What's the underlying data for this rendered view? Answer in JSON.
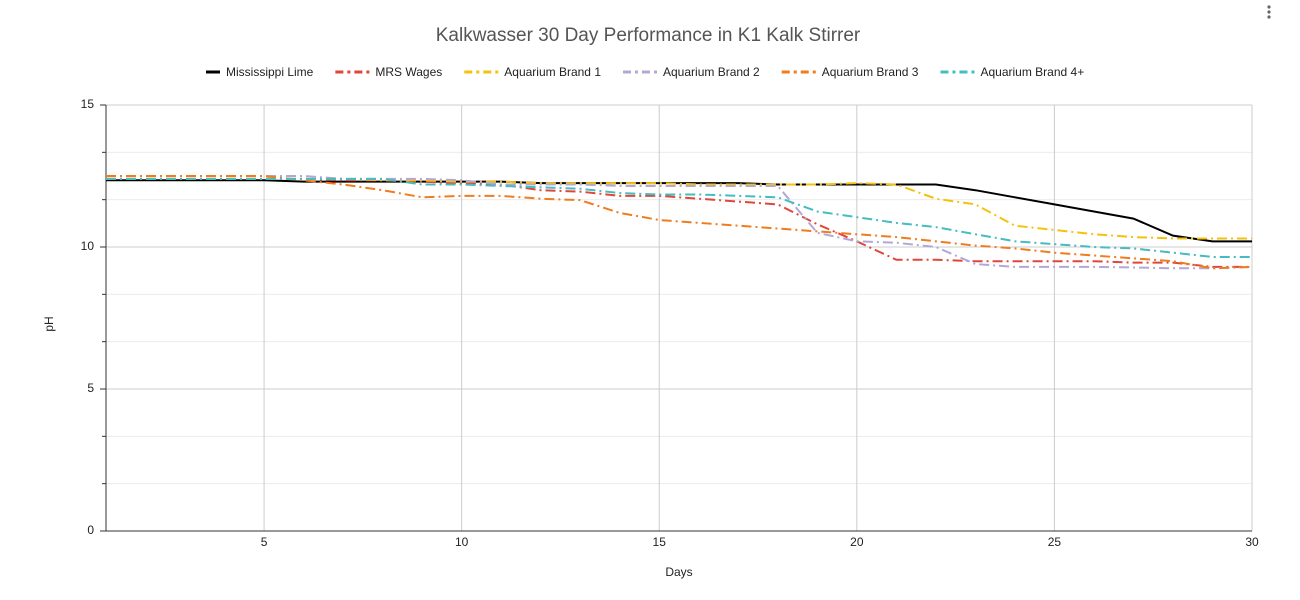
{
  "chart_data": {
    "type": "line",
    "title": "Kalkwasser 30 Day Performance in K1 Kalk Stirrer",
    "x_label": "Days",
    "y_label": "pH",
    "x": [
      1,
      2,
      3,
      4,
      5,
      6,
      7,
      8,
      9,
      10,
      11,
      12,
      13,
      14,
      15,
      16,
      17,
      18,
      19,
      20,
      21,
      22,
      23,
      24,
      25,
      26,
      27,
      28,
      29,
      30
    ],
    "xlim": [
      1,
      30
    ],
    "xticks": [
      5,
      10,
      15,
      20,
      25,
      30
    ],
    "ylim": [
      0,
      15
    ],
    "yticks": [
      0,
      5,
      10,
      15
    ],
    "grid": true,
    "legend": "top",
    "series": [
      {
        "name": "Mississippi Lime",
        "color": "#000000",
        "dash": "solid",
        "values": [
          12.35,
          12.35,
          12.35,
          12.35,
          12.35,
          12.3,
          12.3,
          12.3,
          12.3,
          12.3,
          12.3,
          12.25,
          12.25,
          12.25,
          12.25,
          12.25,
          12.25,
          12.2,
          12.2,
          12.2,
          12.2,
          12.2,
          12.0,
          11.75,
          11.5,
          11.25,
          11.0,
          10.4,
          10.2,
          10.2
        ]
      },
      {
        "name": "MRS Wages",
        "color": "#e0473b",
        "dash": "dash-dot",
        "values": [
          12.4,
          12.4,
          12.4,
          12.4,
          12.4,
          12.4,
          12.35,
          12.35,
          12.3,
          12.25,
          12.2,
          12.0,
          11.95,
          11.8,
          11.8,
          11.7,
          11.6,
          11.5,
          10.8,
          10.2,
          9.55,
          9.55,
          9.5,
          9.5,
          9.5,
          9.5,
          9.45,
          9.45,
          9.3,
          9.3
        ]
      },
      {
        "name": "Aquarium Brand 1",
        "color": "#f4c20d",
        "dash": "dash-dot",
        "values": [
          12.4,
          12.4,
          12.4,
          12.4,
          12.4,
          12.4,
          12.4,
          12.35,
          12.35,
          12.3,
          12.3,
          12.25,
          12.25,
          12.25,
          12.25,
          12.2,
          12.2,
          12.2,
          12.2,
          12.25,
          12.2,
          11.7,
          11.5,
          10.75,
          10.6,
          10.45,
          10.35,
          10.3,
          10.3,
          10.3
        ]
      },
      {
        "name": "Aquarium Brand 2",
        "color": "#b4a7d6",
        "dash": "dash-dot",
        "values": [
          12.5,
          12.5,
          12.5,
          12.5,
          12.5,
          12.5,
          12.4,
          12.4,
          12.4,
          12.35,
          12.2,
          12.2,
          12.2,
          12.15,
          12.15,
          12.15,
          12.15,
          12.15,
          10.5,
          10.2,
          10.15,
          10.0,
          9.4,
          9.3,
          9.3,
          9.3,
          9.28,
          9.25,
          9.25,
          9.3
        ]
      },
      {
        "name": "Aquarium Brand 3",
        "color": "#f07c1d",
        "dash": "dash-dot",
        "values": [
          12.5,
          12.5,
          12.5,
          12.5,
          12.5,
          12.35,
          12.2,
          12.0,
          11.75,
          11.8,
          11.8,
          11.7,
          11.65,
          11.2,
          10.95,
          10.85,
          10.75,
          10.65,
          10.55,
          10.45,
          10.35,
          10.2,
          10.05,
          9.95,
          9.8,
          9.7,
          9.6,
          9.5,
          9.25,
          9.3
        ]
      },
      {
        "name": "Aquarium Brand 4+",
        "color": "#45bcc0",
        "dash": "dash-dot",
        "values": [
          12.4,
          12.4,
          12.4,
          12.4,
          12.4,
          12.4,
          12.4,
          12.4,
          12.2,
          12.2,
          12.15,
          12.1,
          12.05,
          11.9,
          11.85,
          11.85,
          11.8,
          11.75,
          11.25,
          11.05,
          10.85,
          10.7,
          10.45,
          10.2,
          10.1,
          10.0,
          9.95,
          9.8,
          9.65,
          9.65
        ]
      }
    ]
  }
}
